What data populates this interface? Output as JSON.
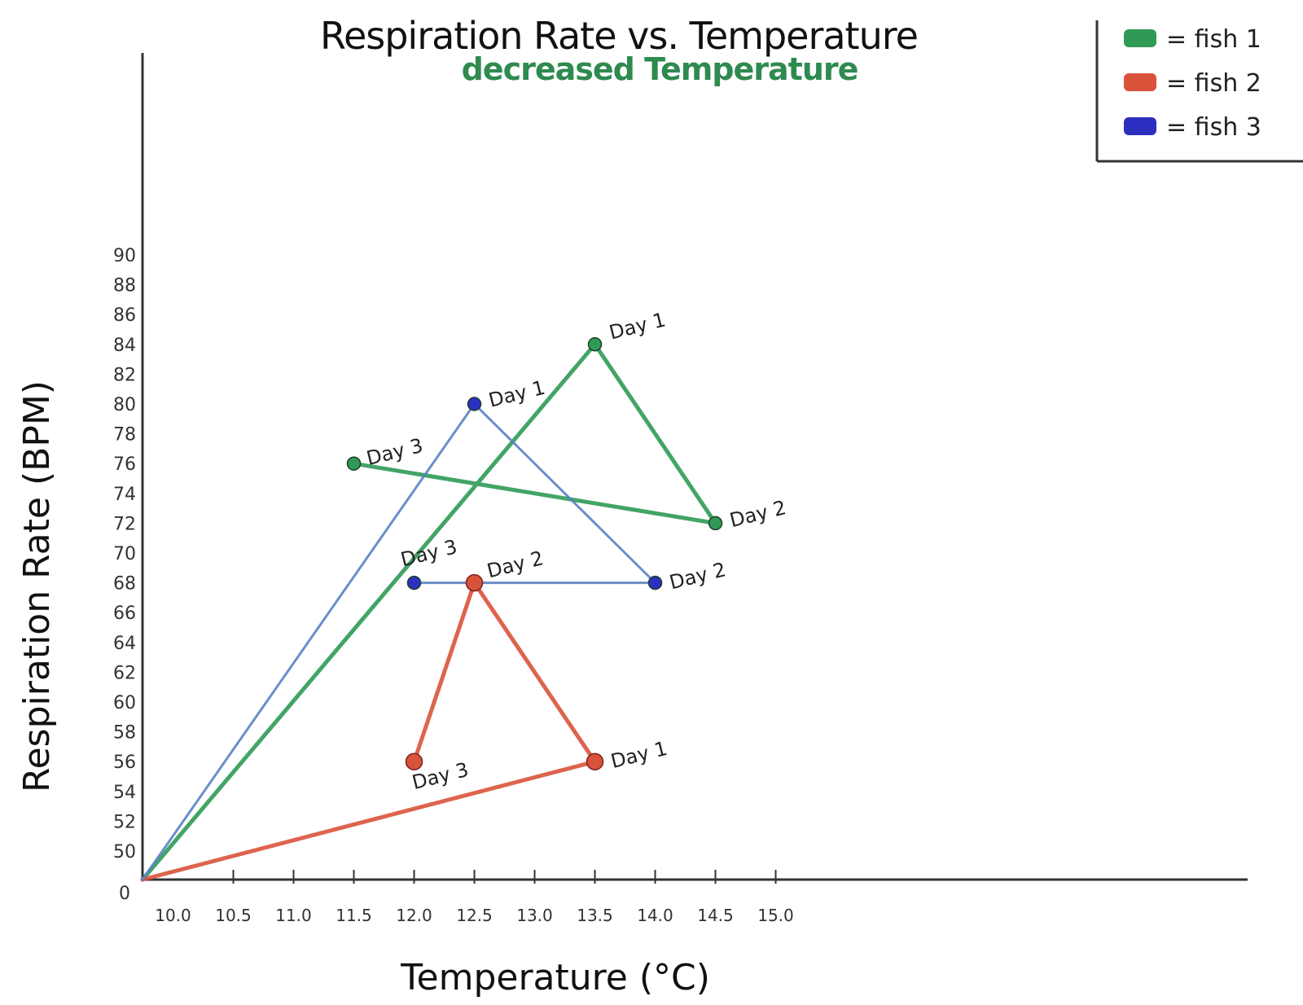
{
  "chart_data": {
    "type": "line",
    "title": "Respiration Rate vs. Temperature",
    "subtitle": "decreased Temperature",
    "xlabel": "Temperature (°C)",
    "ylabel": "Respiration Rate (BPM)",
    "x_ticks": [
      "10.0",
      "10.5",
      "11.0",
      "11.5",
      "12.0",
      "12.5",
      "13.0",
      "13.5",
      "14.0",
      "14.5",
      "15.0"
    ],
    "y_ticks": [
      90,
      88,
      86,
      84,
      82,
      80,
      78,
      76,
      74,
      72,
      70,
      68,
      66,
      64,
      62,
      60,
      58,
      56,
      54,
      52,
      50
    ],
    "origin_label": "0",
    "grid": false,
    "legend_position": "top-right",
    "colors": {
      "fish1": "#2e9a55",
      "fish2": "#d9533a",
      "fish3": "#5b82c4",
      "fish3_points": "#2c2fc0"
    },
    "series": [
      {
        "name": "fish 1",
        "legend_label": "= fish 1",
        "points": [
          {
            "x": 13.5,
            "y": 84,
            "label": "Day 1"
          },
          {
            "x": 14.5,
            "y": 72,
            "label": "Day 2"
          },
          {
            "x": 11.5,
            "y": 76,
            "label": "Day 3"
          }
        ]
      },
      {
        "name": "fish 2",
        "legend_label": "= fish 2",
        "points": [
          {
            "x": 13.5,
            "y": 56,
            "label": "Day 1"
          },
          {
            "x": 12.5,
            "y": 68,
            "label": "Day 2"
          },
          {
            "x": 12.0,
            "y": 56,
            "label": "Day 3"
          }
        ]
      },
      {
        "name": "fish 3",
        "legend_label": "= fish 3",
        "points": [
          {
            "x": 12.5,
            "y": 80,
            "label": "Day 1"
          },
          {
            "x": 14.0,
            "y": 68,
            "label": "Day 2"
          },
          {
            "x": 12.0,
            "y": 68,
            "label": "Day 3"
          }
        ]
      }
    ]
  }
}
